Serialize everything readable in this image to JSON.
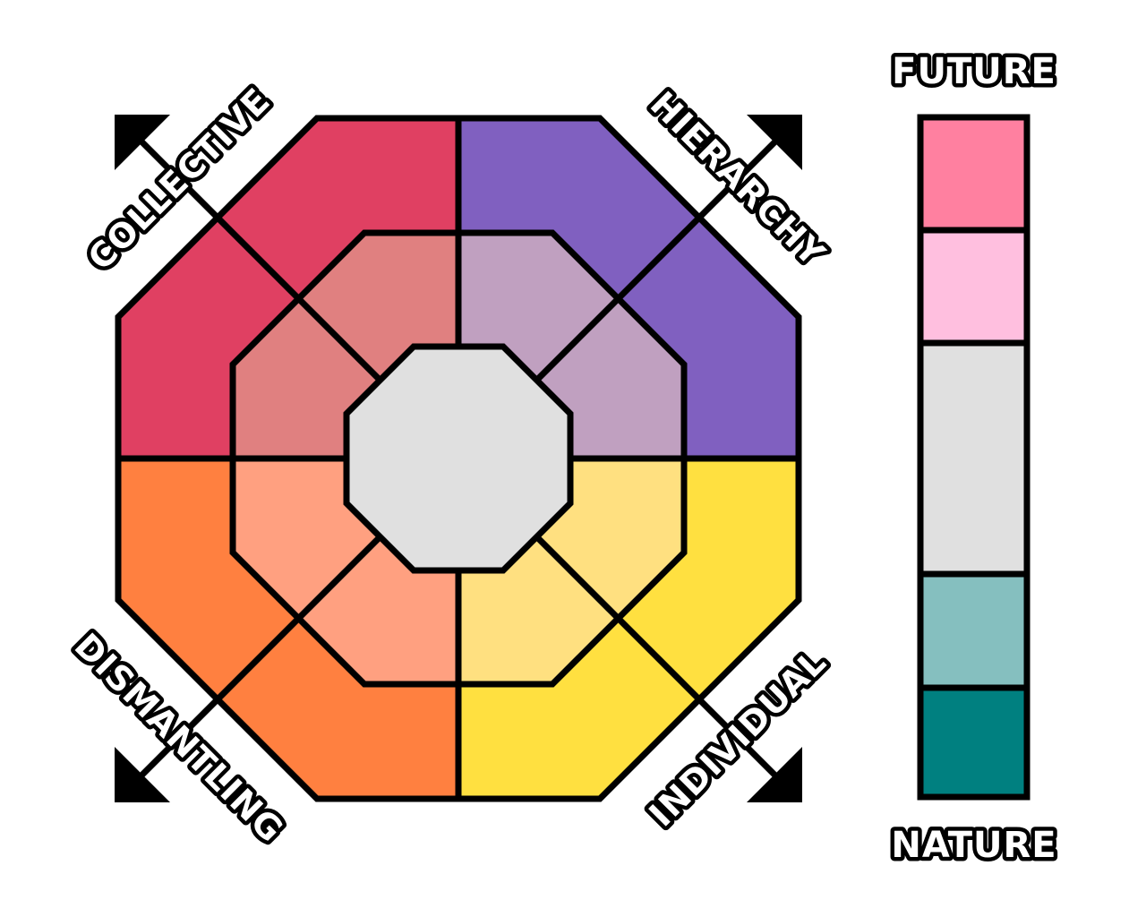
{
  "axis_labels": {
    "top_left": "COLLECTIVE",
    "top_right": "HIERARCHY",
    "bottom_left": "DISMANTLING",
    "bottom_right": "INDIVIDUAL"
  },
  "legend": {
    "top_label": "FUTURE",
    "bottom_label": "NATURE",
    "swatch_colors": [
      "#ff80a0",
      "#ffbfdf",
      "#e0e0e0",
      "#85bfbf",
      "#008080"
    ]
  },
  "colors": {
    "collective_outer": "#e04062",
    "collective_inner": "#e08080",
    "hierarchy_outer": "#8060c0",
    "hierarchy_inner": "#c0a0c0",
    "dismantling_outer": "#ff8040",
    "dismantling_inner": "#ffa080",
    "individual_outer": "#ffe040",
    "individual_inner": "#ffe080",
    "center": "#e0e0e0",
    "outline": "#000000"
  }
}
